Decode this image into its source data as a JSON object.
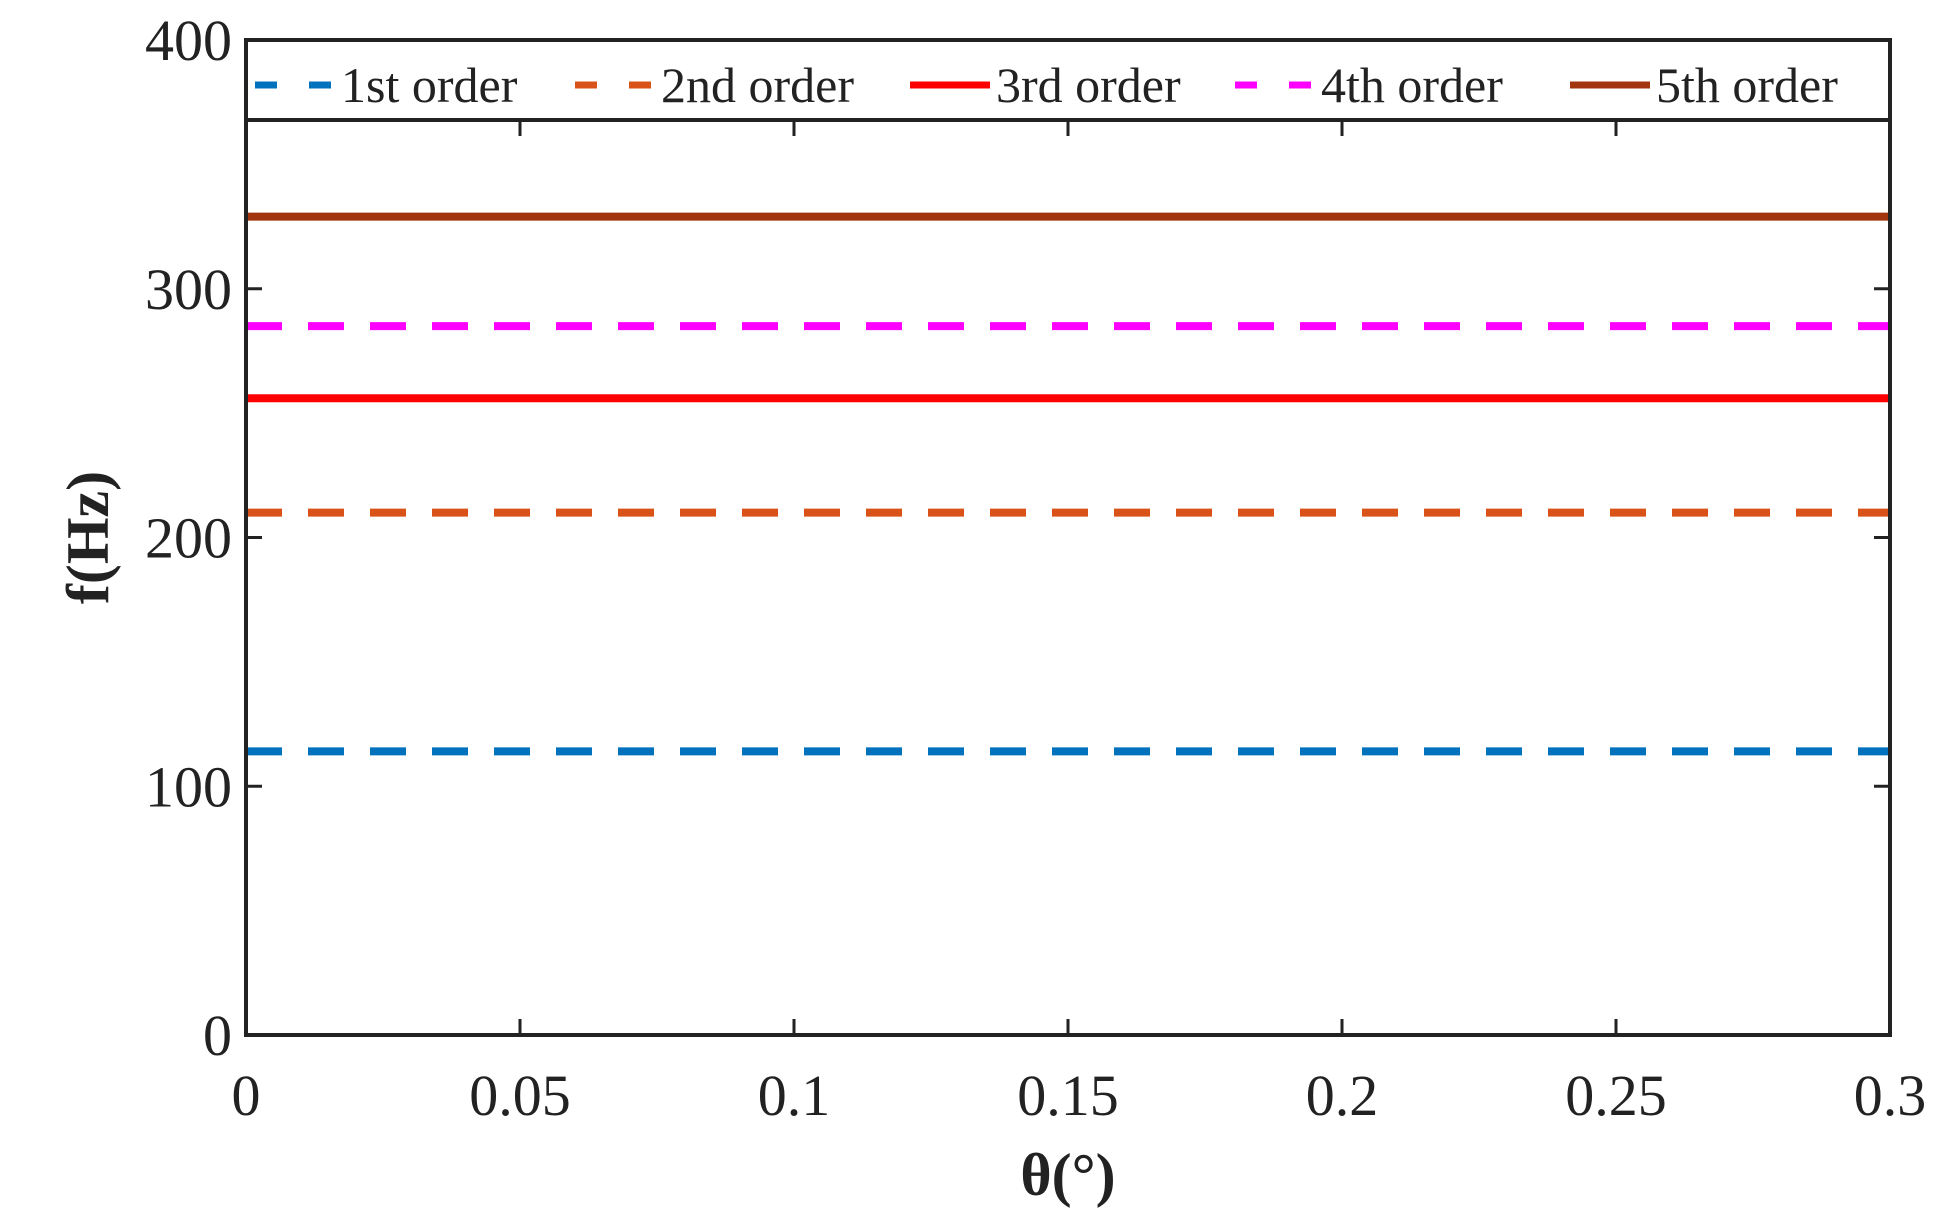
{
  "chart_data": {
    "type": "line",
    "title": "",
    "xlabel": "θ(°)",
    "ylabel": "f(Hz)",
    "xlim": [
      0,
      0.3
    ],
    "ylim": [
      0,
      400
    ],
    "xticks": [
      0,
      0.05,
      0.1,
      0.15,
      0.2,
      0.25,
      0.3
    ],
    "xtick_labels": [
      "0",
      "0.05",
      "0.1",
      "0.15",
      "0.2",
      "0.25",
      "0.3"
    ],
    "yticks": [
      0,
      100,
      200,
      300,
      400
    ],
    "ytick_labels": [
      "0",
      "100",
      "200",
      "300",
      "400"
    ],
    "grid": false,
    "legend_position": "top, single row inside axes",
    "x": [
      0,
      0.3
    ],
    "series": [
      {
        "name": "1st order",
        "values": [
          114,
          114
        ],
        "color": "#0072BD",
        "style": "dashed"
      },
      {
        "name": "2nd order",
        "values": [
          210,
          210
        ],
        "color": "#D95319",
        "style": "dashed"
      },
      {
        "name": "3rd order",
        "values": [
          256,
          256
        ],
        "color": "#FF0000",
        "style": "solid"
      },
      {
        "name": "4th order",
        "values": [
          285,
          285
        ],
        "color": "#FF00FF",
        "style": "dashed"
      },
      {
        "name": "5th order",
        "values": [
          329,
          329
        ],
        "color": "#A2340F",
        "style": "solid"
      }
    ]
  }
}
